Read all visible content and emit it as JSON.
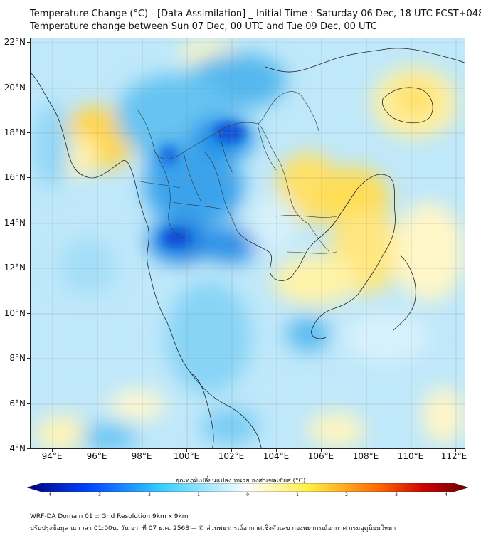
{
  "title_line1": "Temperature Change (°C) - [Data Assimilation] _ Initial Time : Saturday 06 Dec, 18 UTC FCST+048",
  "title_line2": "Temperature change between Sun 07 Dec, 00 UTC and Tue 09 Dec, 00 UTC",
  "lat_labels": [
    "22°N",
    "20°N",
    "18°N",
    "16°N",
    "14°N",
    "12°N",
    "10°N",
    "8°N",
    "6°N",
    "4°N"
  ],
  "lon_labels": [
    "94°E",
    "96°E",
    "98°E",
    "100°E",
    "102°E",
    "104°E",
    "106°E",
    "108°E",
    "110°E",
    "112°E"
  ],
  "colorbar": {
    "label": "อุณหภูมิเปลี่ยนแปลง หน่วย องศาเซลเซียส (°C)",
    "ticks": [
      "-4",
      "-3",
      "-2",
      "-1",
      "0",
      "1",
      "2",
      "3",
      "4"
    ],
    "colors": [
      "#00007f",
      "#0044ff",
      "#33ccff",
      "#ffffff",
      "#ffee44",
      "#ff6600",
      "#cc0000",
      "#6a0000"
    ]
  },
  "footer_line1": "WRF-DA Domain 01 :: Grid Resolution 9km x 9km",
  "footer_line2": "ปรับปรุงข้อมูล ณ เวลา 01:00น. วัน อา. ที่ 07 ธ.ค. 2568 -- © ส่วนพยากรณ์อากาศเชิงตัวเลข กองพยากรณ์อากาศ กรมอุตุนิยมวิทยา"
}
